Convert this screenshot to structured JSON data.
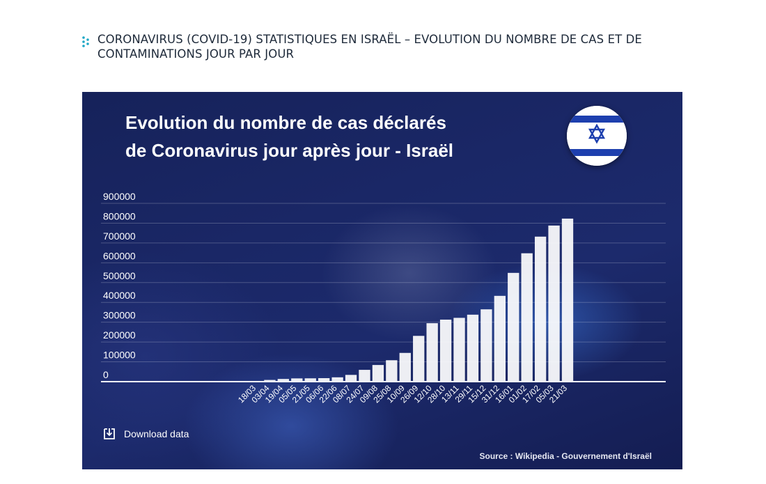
{
  "page": {
    "heading": "CORONAVIRUS (COVID-19) STATISTIQUES EN ISRAËL – EVOLUTION DU NOMBRE DE CAS ET DE CONTAMINATIONS JOUR PAR JOUR",
    "heading_icon": "dots-grip-icon",
    "accent_color": "#1ea7c5"
  },
  "card": {
    "title_line1": "Evolution du nombre de cas déclarés",
    "title_line2": "de Coronavirus jour après jour - Israël",
    "flag_icon": "israel-flag-icon",
    "download_label": "Download data",
    "download_icon": "download-icon",
    "source": "Source : Wikipedia - Gouvernement d'Israël",
    "background_color": "#1a2766",
    "bar_color": "#ffffff"
  },
  "chart_data": {
    "type": "bar",
    "title": "Evolution du nombre de cas déclarés de Coronavirus jour après jour - Israël",
    "xlabel": "",
    "ylabel": "",
    "ylim": [
      0,
      900000
    ],
    "grid": true,
    "yticks": [
      "0",
      "100000",
      "200000",
      "300000",
      "400000",
      "500000",
      "600000",
      "700000",
      "800000",
      "900000"
    ],
    "categories": [
      "18/03",
      "03/04",
      "19/04",
      "05/05",
      "21/05",
      "06/06",
      "22/06",
      "08/07",
      "24/07",
      "09/08",
      "25/08",
      "10/09",
      "26/09",
      "12/10",
      "28/10",
      "13/11",
      "29/11",
      "15/12",
      "31/12",
      "16/01",
      "01/02",
      "17/02",
      "05/03",
      "21/03"
    ],
    "values": [
      400,
      8500,
      13500,
      16300,
      16700,
      17600,
      21800,
      34000,
      59500,
      84000,
      108000,
      145000,
      231000,
      295000,
      313000,
      322000,
      338000,
      365000,
      433000,
      549000,
      648000,
      732000,
      788000,
      823000
    ]
  }
}
